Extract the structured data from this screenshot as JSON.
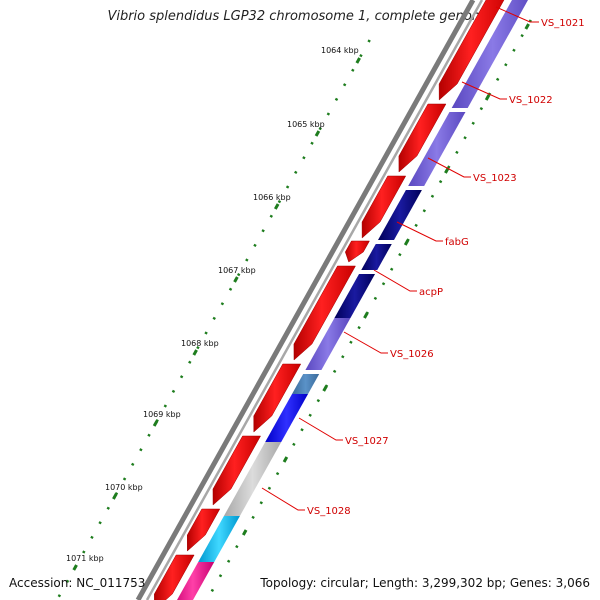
{
  "title": "Vibrio splendidus LGP32 chromosome 1, complete genome",
  "footer": {
    "accession": "Accession: NC_011753",
    "topology": "Topology: circular; Length: 3,299,302 bp; Genes: 3,066"
  },
  "ticks": [
    {
      "label": "1064 kbp"
    },
    {
      "label": "1065 kbp"
    },
    {
      "label": "1066 kbp"
    },
    {
      "label": "1067 kbp"
    },
    {
      "label": "1068 kbp"
    },
    {
      "label": "1069 kbp"
    },
    {
      "label": "1070 kbp"
    },
    {
      "label": "1071 kbp"
    }
  ],
  "genes": [
    {
      "label": "VS_1021"
    },
    {
      "label": "VS_1022"
    },
    {
      "label": "VS_1023"
    },
    {
      "label": "fabG"
    },
    {
      "label": "acpP"
    },
    {
      "label": "VS_1026"
    },
    {
      "label": "VS_1027"
    },
    {
      "label": "VS_1028"
    }
  ],
  "colors": {
    "backbone": "#808080",
    "cds": "#ff0000",
    "ticks": "#1e7d1e",
    "label_line": "#e00000",
    "label_text": "#d00000",
    "cog_tracks": [
      "#7a68d8",
      "#000080",
      "#0000ff",
      "#4682b4",
      "#c0c0c0",
      "#00bfff",
      "#ff1493"
    ]
  }
}
